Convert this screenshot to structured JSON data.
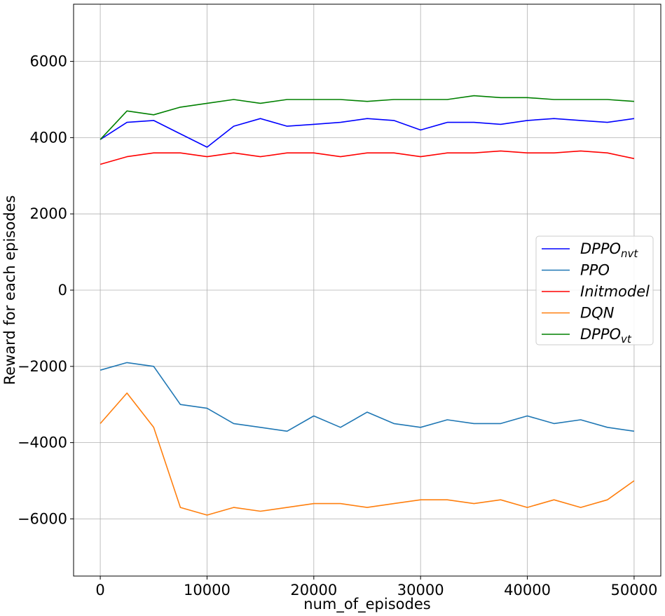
{
  "chart_data": {
    "type": "line",
    "title": "",
    "xlabel": "num_of_episodes",
    "ylabel": "Reward for each episodes",
    "xlim": [
      -2500,
      52500
    ],
    "ylim": [
      -7500,
      7500
    ],
    "x_ticks": [
      0,
      10000,
      20000,
      30000,
      40000,
      50000
    ],
    "y_ticks": [
      -6000,
      -4000,
      -2000,
      0,
      2000,
      4000,
      6000
    ],
    "x_tick_labels": [
      "0",
      "10000",
      "20000",
      "30000",
      "40000",
      "50000"
    ],
    "y_tick_labels": [
      "−6000",
      "−4000",
      "−2000",
      "0",
      "2000",
      "4000",
      "6000"
    ],
    "grid": true,
    "legend_position": "center-right",
    "x": [
      0,
      2500,
      5000,
      7500,
      10000,
      12500,
      15000,
      17500,
      20000,
      22500,
      25000,
      27500,
      30000,
      32500,
      35000,
      37500,
      40000,
      42500,
      45000,
      47500,
      50000
    ],
    "series": [
      {
        "name": "DPPO",
        "subscript": "nvt",
        "color": "#0000ff",
        "values": [
          3950,
          4400,
          4450,
          4100,
          3750,
          4300,
          4500,
          4300,
          4350,
          4400,
          4500,
          4450,
          4200,
          4400,
          4400,
          4350,
          4450,
          4500,
          4450,
          4400,
          4500
        ]
      },
      {
        "name": "PPO",
        "subscript": "",
        "color": "#1f77b4",
        "values": [
          -2100,
          -1900,
          -2000,
          -3000,
          -3100,
          -3500,
          -3600,
          -3700,
          -3300,
          -3600,
          -3200,
          -3500,
          -3600,
          -3400,
          -3500,
          -3500,
          -3300,
          -3500,
          -3400,
          -3600,
          -3700
        ]
      },
      {
        "name": "Initmodel",
        "subscript": "",
        "color": "#ff0000",
        "values": [
          3300,
          3500,
          3600,
          3600,
          3500,
          3600,
          3500,
          3600,
          3600,
          3500,
          3600,
          3600,
          3500,
          3600,
          3600,
          3650,
          3600,
          3600,
          3650,
          3600,
          3450
        ]
      },
      {
        "name": "DQN",
        "subscript": "",
        "color": "#ff7f0e",
        "values": [
          -3500,
          -2700,
          -3600,
          -5700,
          -5900,
          -5700,
          -5800,
          -5700,
          -5600,
          -5600,
          -5700,
          -5600,
          -5500,
          -5500,
          -5600,
          -5500,
          -5700,
          -5500,
          -5700,
          -5500,
          -5000
        ]
      },
      {
        "name": "DPPO",
        "subscript": "vt",
        "color": "#008000",
        "values": [
          3950,
          4700,
          4600,
          4800,
          4900,
          5000,
          4900,
          5000,
          5000,
          5000,
          4950,
          5000,
          5000,
          5000,
          5100,
          5050,
          5050,
          5000,
          5000,
          5000,
          4950
        ]
      }
    ]
  }
}
